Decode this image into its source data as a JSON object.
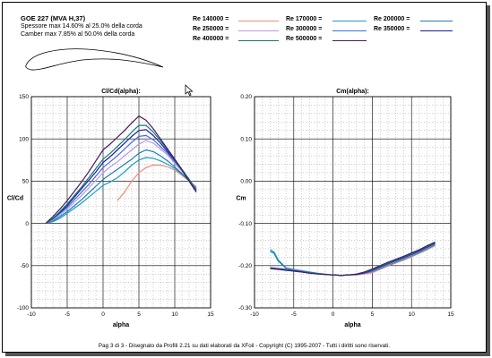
{
  "header": {
    "title": "GOE 227 (MVA H,37)",
    "thickness": "Spessore max 14.60% al 25.0% della corda",
    "camber": "Camber max 7.85% al 50.0% della corda"
  },
  "legend": [
    {
      "label": "Re 140000 =",
      "color": "#f08c7c"
    },
    {
      "label": "Re 170000 =",
      "color": "#1aa0c8"
    },
    {
      "label": "Re 200000 =",
      "color": "#1b7fb0"
    },
    {
      "label": "Re 250000 =",
      "color": "#b99ae6"
    },
    {
      "label": "Re 300000 =",
      "color": "#3e6ee0"
    },
    {
      "label": "Re 350000 =",
      "color": "#1a1a9c"
    },
    {
      "label": "Re 400000 =",
      "color": "#127a70"
    },
    {
      "label": "Re 500000 =",
      "color": "#4a1a60"
    }
  ],
  "footer": "Pag 3 di 3  -   Disegnato da Profili 2.21 su dati elaborati da XFoil - Copyright (C) 1995-2007 - Tutti i diritti sono riservati.",
  "chart_data": [
    {
      "type": "line",
      "title": "Cl/Cd(alpha):",
      "xlabel": "alpha",
      "ylabel": "Cl/Cd",
      "xlim": [
        -10,
        15
      ],
      "ylim": [
        -100,
        150
      ],
      "xticks": [
        -10,
        -5,
        0,
        5,
        10,
        15
      ],
      "yticks": [
        -100,
        -50,
        0,
        50,
        100,
        150
      ],
      "grid": true,
      "series": [
        {
          "name": "Re 140000",
          "color": "#f08c7c",
          "x": [
            2,
            3,
            4,
            5,
            6,
            7,
            8,
            9,
            10,
            11,
            12,
            13
          ],
          "y": [
            27,
            37,
            50,
            60,
            66,
            69,
            69,
            67,
            63,
            57,
            50,
            43
          ]
        },
        {
          "name": "Re 170000",
          "color": "#1aa0c8",
          "x": [
            -8,
            -7,
            -6,
            -5,
            -4,
            -3,
            -2,
            -1,
            0,
            1,
            2,
            3,
            4,
            5,
            6,
            7,
            8,
            9,
            10,
            11,
            12,
            13
          ],
          "y": [
            0,
            2,
            6,
            12,
            18,
            24,
            31,
            38,
            45,
            49,
            54,
            61,
            69,
            75,
            78,
            77,
            74,
            70,
            65,
            58,
            51,
            42
          ]
        },
        {
          "name": "Re 200000",
          "color": "#1b7fb0",
          "x": [
            -8,
            -7,
            -6,
            -5,
            -4,
            -3,
            -2,
            -1,
            0,
            1,
            2,
            3,
            4,
            5,
            6,
            7,
            8,
            9,
            10,
            11,
            12,
            13
          ],
          "y": [
            0,
            3,
            8,
            14,
            21,
            28,
            36,
            44,
            52,
            58,
            64,
            70,
            76,
            83,
            87,
            85,
            80,
            74,
            67,
            59,
            51,
            42
          ]
        },
        {
          "name": "Re 250000",
          "color": "#b99ae6",
          "x": [
            -8,
            -7,
            -6,
            -5,
            -4,
            -3,
            -2,
            -1,
            0,
            1,
            2,
            3,
            4,
            5,
            6,
            7,
            8,
            9,
            10,
            11,
            12,
            13
          ],
          "y": [
            0,
            4,
            10,
            17,
            25,
            33,
            42,
            51,
            60,
            67,
            73,
            80,
            87,
            94,
            98,
            95,
            88,
            81,
            71,
            62,
            52,
            41
          ]
        },
        {
          "name": "Re 300000",
          "color": "#3e6ee0",
          "x": [
            -8,
            -7,
            -6,
            -5,
            -4,
            -3,
            -2,
            -1,
            0,
            1,
            2,
            3,
            4,
            5,
            6,
            7,
            8,
            9,
            10,
            11,
            12,
            13
          ],
          "y": [
            0,
            5,
            12,
            19,
            28,
            37,
            46,
            56,
            66,
            73,
            80,
            88,
            96,
            103,
            104,
            99,
            91,
            83,
            73,
            63,
            52,
            40
          ]
        },
        {
          "name": "Re 350000",
          "color": "#1a1a9c",
          "x": [
            -8,
            -7,
            -6,
            -5,
            -4,
            -3,
            -2,
            -1,
            0,
            1,
            2,
            3,
            4,
            5,
            6,
            7,
            8,
            9,
            10,
            11,
            12,
            13
          ],
          "y": [
            0,
            6,
            13,
            21,
            31,
            41,
            51,
            61,
            72,
            79,
            87,
            95,
            103,
            110,
            111,
            104,
            95,
            85,
            75,
            64,
            52,
            39
          ]
        },
        {
          "name": "Re 400000",
          "color": "#127a70",
          "x": [
            -8,
            -7,
            -6,
            -5,
            -4,
            -3,
            -2,
            -1,
            0,
            1,
            2,
            3,
            4,
            5,
            6,
            7,
            8,
            9,
            10,
            11,
            12,
            13
          ],
          "y": [
            0,
            6,
            14,
            23,
            33,
            43,
            54,
            65,
            76,
            83,
            91,
            99,
            108,
            116,
            116,
            108,
            98,
            87,
            76,
            64,
            52,
            38
          ]
        },
        {
          "name": "Re 500000",
          "color": "#4a1a60",
          "x": [
            -8,
            -7,
            -6,
            -5,
            -4,
            -3,
            -2,
            -1,
            0,
            1,
            2,
            3,
            4,
            5,
            6,
            7,
            8,
            9,
            10,
            11,
            12,
            13
          ],
          "y": [
            0,
            8,
            17,
            27,
            38,
            49,
            61,
            74,
            87,
            94,
            102,
            110,
            119,
            127,
            122,
            112,
            100,
            88,
            76,
            63,
            50,
            37
          ]
        }
      ]
    },
    {
      "type": "line",
      "title": "Cm(alpha):",
      "xlabel": "alpha",
      "ylabel": "Cm",
      "xlim": [
        -10,
        15
      ],
      "ylim": [
        -0.3,
        0.2
      ],
      "xticks": [
        -10,
        -5,
        0,
        5,
        10,
        15
      ],
      "yticks": [
        -0.3,
        -0.2,
        -0.1,
        0,
        0.1,
        0.2
      ],
      "ytick_labels": [
        "-0.30",
        "-0.20",
        "-0.10",
        "0.00",
        "0.10",
        "0.20"
      ],
      "grid": true,
      "series": [
        {
          "name": "Re 140000",
          "color": "#f08c7c",
          "x": [
            2,
            3,
            4,
            5,
            6,
            7,
            8,
            9,
            10,
            11,
            12,
            13
          ],
          "y": [
            -0.222,
            -0.222,
            -0.22,
            -0.217,
            -0.209,
            -0.201,
            -0.194,
            -0.187,
            -0.179,
            -0.171,
            -0.162,
            -0.153
          ]
        },
        {
          "name": "Re 170000",
          "color": "#1aa0c8",
          "x": [
            -8,
            -7.5,
            -7,
            -6,
            -5,
            -4,
            -3,
            -2,
            -1,
            0,
            1,
            2,
            3,
            4,
            5,
            6,
            7,
            8,
            9,
            10,
            11,
            12,
            13
          ],
          "y": [
            -0.162,
            -0.168,
            -0.186,
            -0.205,
            -0.209,
            -0.212,
            -0.215,
            -0.218,
            -0.22,
            -0.222,
            -0.223,
            -0.222,
            -0.221,
            -0.218,
            -0.214,
            -0.207,
            -0.199,
            -0.192,
            -0.185,
            -0.177,
            -0.169,
            -0.16,
            -0.151
          ]
        },
        {
          "name": "Re 200000",
          "color": "#1b7fb0",
          "x": [
            -8,
            -7.5,
            -7,
            -6,
            -5,
            -4,
            -3,
            -2,
            -1,
            0,
            1,
            2,
            3,
            4,
            5,
            6,
            7,
            8,
            9,
            10,
            11,
            12,
            13
          ],
          "y": [
            -0.166,
            -0.171,
            -0.189,
            -0.206,
            -0.21,
            -0.213,
            -0.216,
            -0.218,
            -0.221,
            -0.222,
            -0.223,
            -0.222,
            -0.221,
            -0.218,
            -0.214,
            -0.206,
            -0.198,
            -0.191,
            -0.184,
            -0.176,
            -0.168,
            -0.159,
            -0.15
          ]
        },
        {
          "name": "Re 250000",
          "color": "#b99ae6",
          "x": [
            -8,
            -7,
            -6,
            -5,
            -4,
            -3,
            -2,
            -1,
            0,
            1,
            2,
            3,
            4,
            5,
            6,
            7,
            8,
            9,
            10,
            11,
            12,
            13
          ],
          "y": [
            -0.204,
            -0.206,
            -0.208,
            -0.211,
            -0.214,
            -0.217,
            -0.219,
            -0.221,
            -0.222,
            -0.223,
            -0.222,
            -0.221,
            -0.218,
            -0.213,
            -0.205,
            -0.197,
            -0.19,
            -0.183,
            -0.175,
            -0.167,
            -0.158,
            -0.149
          ]
        },
        {
          "name": "Re 300000",
          "color": "#3e6ee0",
          "x": [
            -8,
            -7,
            -6,
            -5,
            -4,
            -3,
            -2,
            -1,
            0,
            1,
            2,
            3,
            4,
            5,
            6,
            7,
            8,
            9,
            10,
            11,
            12,
            13
          ],
          "y": [
            -0.205,
            -0.207,
            -0.209,
            -0.212,
            -0.214,
            -0.217,
            -0.219,
            -0.221,
            -0.222,
            -0.223,
            -0.222,
            -0.221,
            -0.218,
            -0.212,
            -0.204,
            -0.196,
            -0.189,
            -0.182,
            -0.174,
            -0.166,
            -0.157,
            -0.148
          ]
        },
        {
          "name": "Re 350000",
          "color": "#1a1a9c",
          "x": [
            -8,
            -7,
            -6,
            -5,
            -4,
            -3,
            -2,
            -1,
            0,
            1,
            2,
            3,
            4,
            5,
            6,
            7,
            8,
            9,
            10,
            11,
            12,
            13
          ],
          "y": [
            -0.206,
            -0.208,
            -0.21,
            -0.212,
            -0.215,
            -0.217,
            -0.219,
            -0.221,
            -0.222,
            -0.223,
            -0.222,
            -0.221,
            -0.217,
            -0.211,
            -0.203,
            -0.195,
            -0.188,
            -0.181,
            -0.173,
            -0.165,
            -0.156,
            -0.147
          ]
        },
        {
          "name": "Re 400000",
          "color": "#127a70",
          "x": [
            -8,
            -7,
            -6,
            -5,
            -4,
            -3,
            -2,
            -1,
            0,
            1,
            2,
            3,
            4,
            5,
            6,
            7,
            8,
            9,
            10,
            11,
            12,
            13
          ],
          "y": [
            -0.206,
            -0.208,
            -0.21,
            -0.213,
            -0.215,
            -0.217,
            -0.219,
            -0.221,
            -0.222,
            -0.223,
            -0.222,
            -0.22,
            -0.216,
            -0.21,
            -0.202,
            -0.194,
            -0.187,
            -0.18,
            -0.172,
            -0.164,
            -0.155,
            -0.146
          ]
        },
        {
          "name": "Re 500000",
          "color": "#4a1a60",
          "x": [
            -8,
            -7,
            -6,
            -5,
            -4,
            -3,
            -2,
            -1,
            0,
            1,
            2,
            3,
            4,
            5,
            6,
            7,
            8,
            9,
            10,
            11,
            12,
            13
          ],
          "y": [
            -0.207,
            -0.209,
            -0.211,
            -0.213,
            -0.215,
            -0.218,
            -0.22,
            -0.221,
            -0.222,
            -0.223,
            -0.222,
            -0.22,
            -0.215,
            -0.208,
            -0.2,
            -0.192,
            -0.185,
            -0.178,
            -0.17,
            -0.162,
            -0.153,
            -0.144
          ]
        }
      ]
    }
  ]
}
